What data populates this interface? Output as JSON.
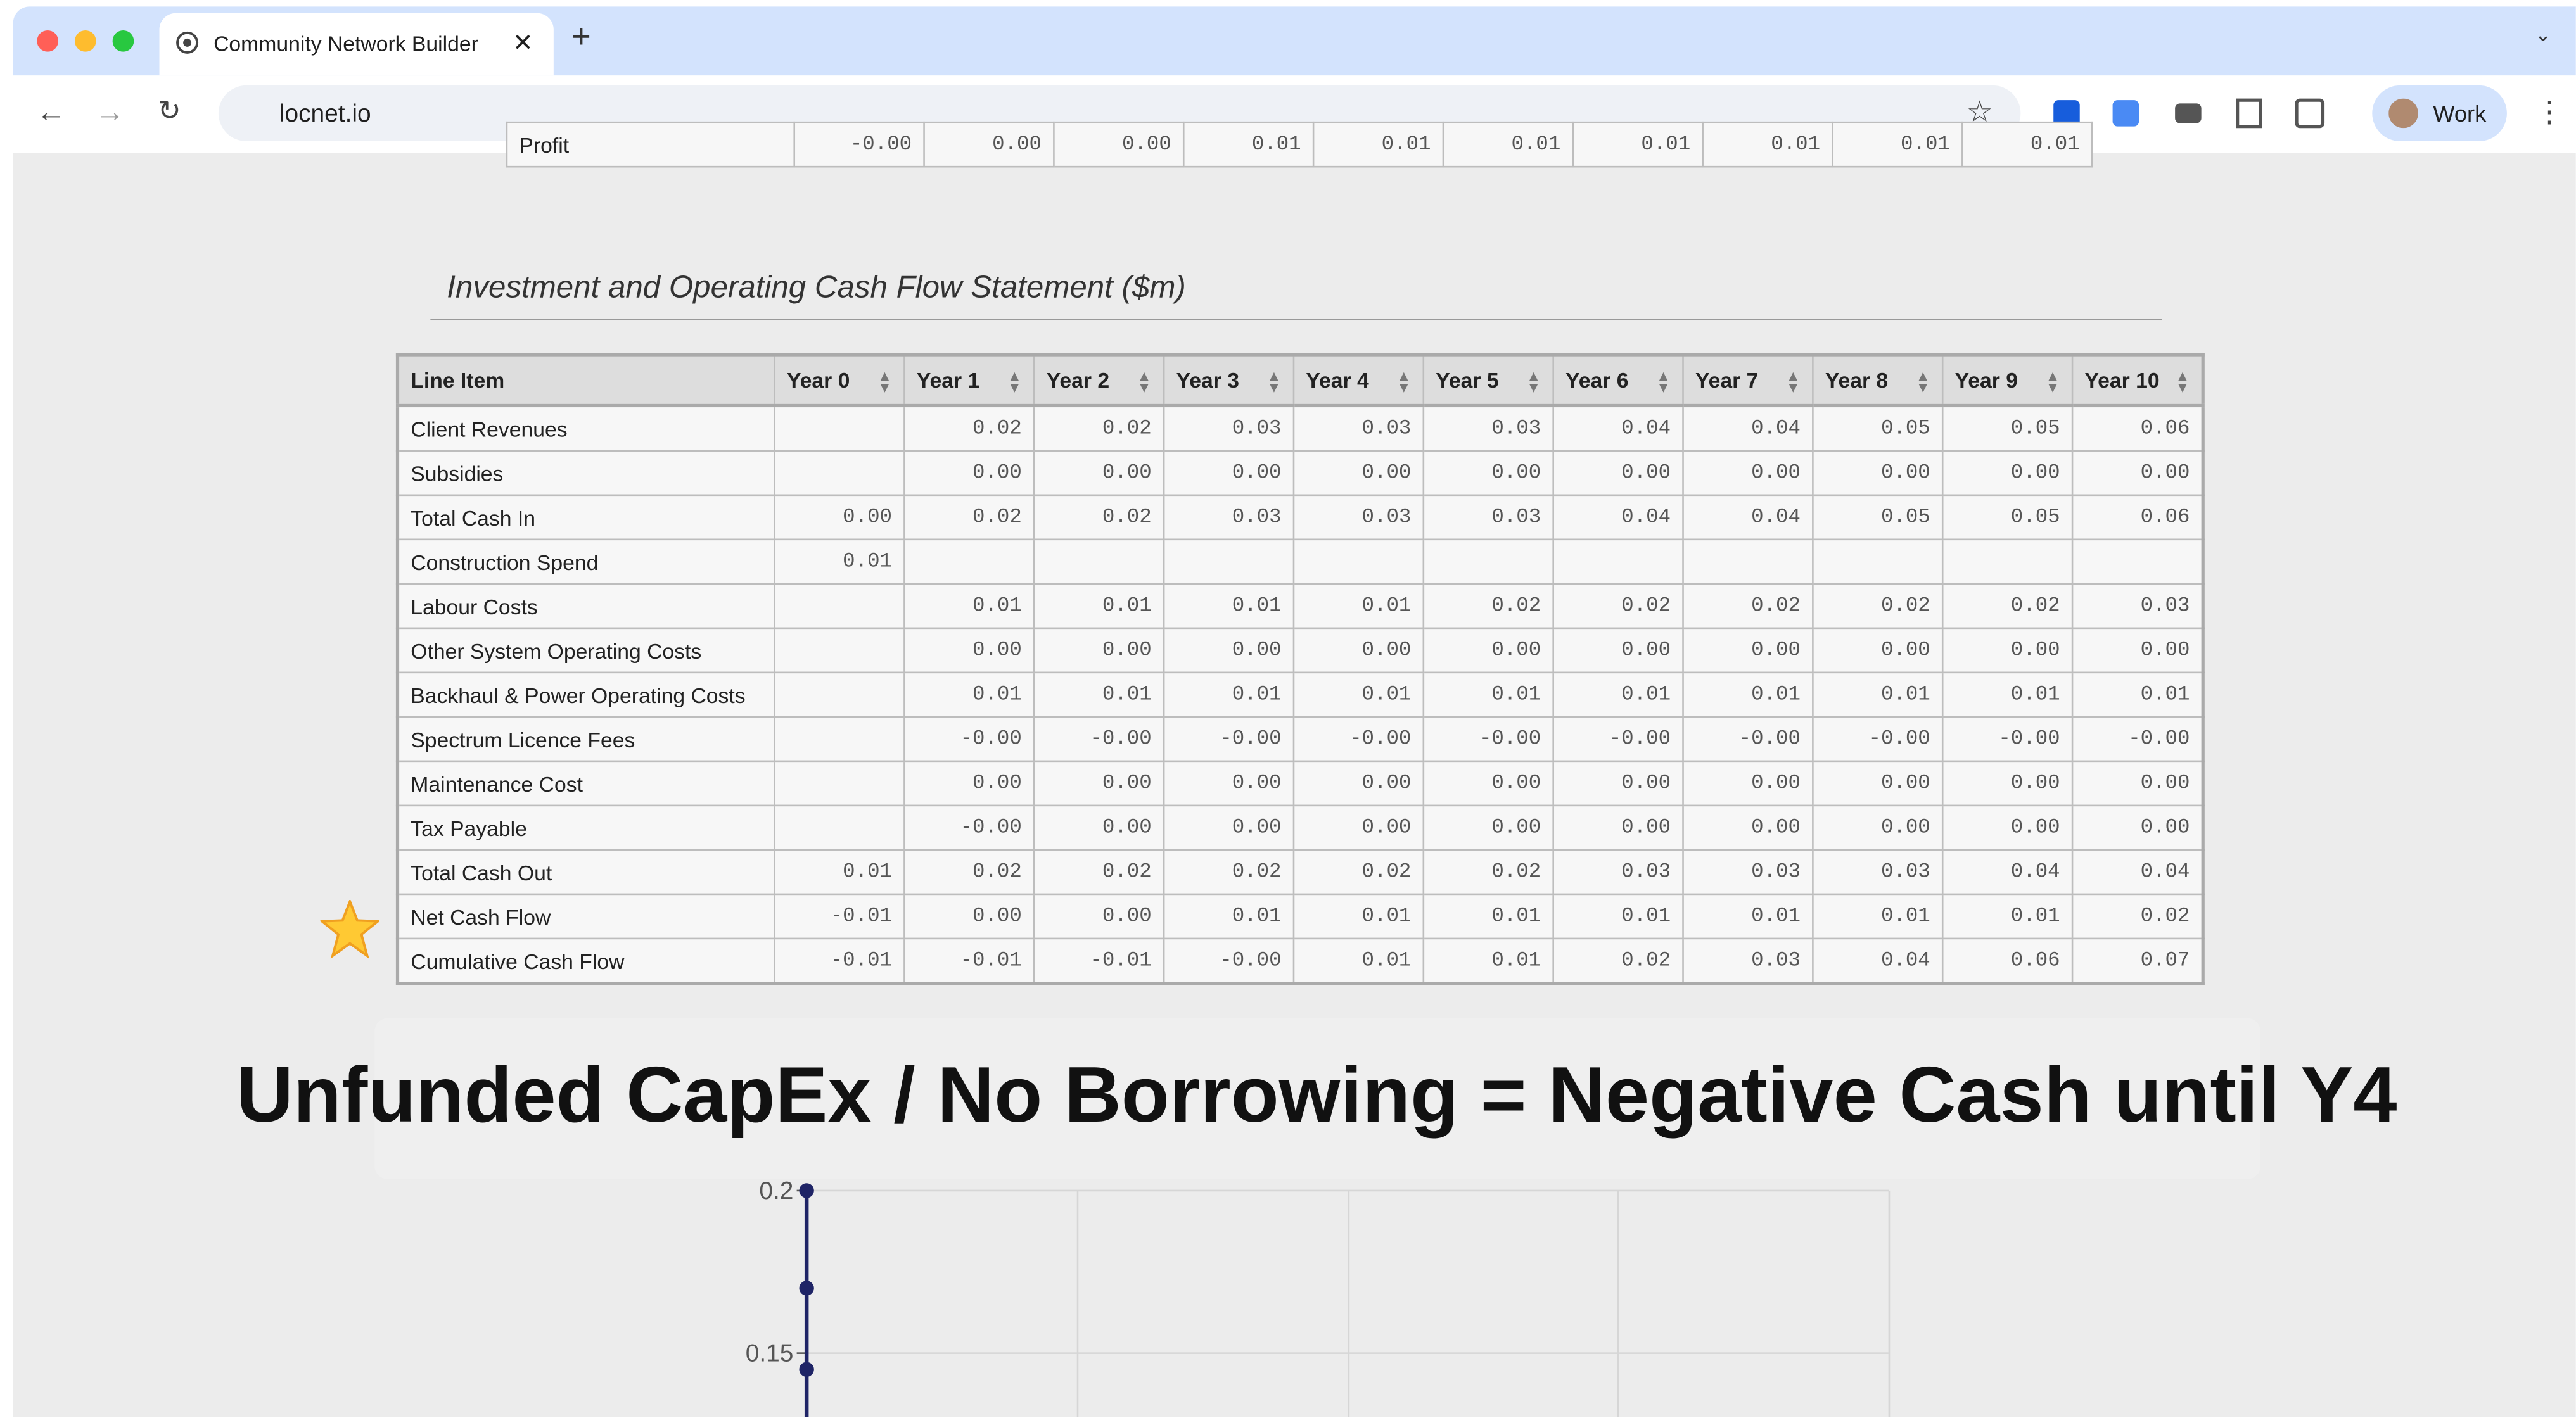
{
  "browser": {
    "tab_title": "Community Network Builder",
    "url": "locnet.io",
    "profile": "Work"
  },
  "previous_table": {
    "row": [
      "Profit",
      "-0.00",
      "0.00",
      "0.00",
      "0.01",
      "0.01",
      "0.01",
      "0.01",
      "0.01",
      "0.01",
      "0.01"
    ]
  },
  "section": {
    "title": "Investment and Operating Cash Flow Statement ($m)"
  },
  "table": {
    "columns": [
      "Line Item",
      "Year 0",
      "Year 1",
      "Year 2",
      "Year 3",
      "Year 4",
      "Year 5",
      "Year 6",
      "Year 7",
      "Year 8",
      "Year 9",
      "Year 10"
    ],
    "rows": [
      [
        "Client Revenues",
        null,
        "0.02",
        "0.02",
        "0.03",
        "0.03",
        "0.03",
        "0.04",
        "0.04",
        "0.05",
        "0.05",
        "0.06"
      ],
      [
        "Subsidies",
        null,
        "0.00",
        "0.00",
        "0.00",
        "0.00",
        "0.00",
        "0.00",
        "0.00",
        "0.00",
        "0.00",
        "0.00"
      ],
      [
        "Total Cash In",
        "0.00",
        "0.02",
        "0.02",
        "0.03",
        "0.03",
        "0.03",
        "0.04",
        "0.04",
        "0.05",
        "0.05",
        "0.06"
      ],
      [
        "Construction Spend",
        "0.01",
        null,
        null,
        null,
        null,
        null,
        null,
        null,
        null,
        null,
        null
      ],
      [
        "Labour Costs",
        null,
        "0.01",
        "0.01",
        "0.01",
        "0.01",
        "0.02",
        "0.02",
        "0.02",
        "0.02",
        "0.02",
        "0.03"
      ],
      [
        "Other System Operating Costs",
        null,
        "0.00",
        "0.00",
        "0.00",
        "0.00",
        "0.00",
        "0.00",
        "0.00",
        "0.00",
        "0.00",
        "0.00"
      ],
      [
        "Backhaul & Power Operating Costs",
        null,
        "0.01",
        "0.01",
        "0.01",
        "0.01",
        "0.01",
        "0.01",
        "0.01",
        "0.01",
        "0.01",
        "0.01"
      ],
      [
        "Spectrum Licence Fees",
        null,
        "-0.00",
        "-0.00",
        "-0.00",
        "-0.00",
        "-0.00",
        "-0.00",
        "-0.00",
        "-0.00",
        "-0.00",
        "-0.00"
      ],
      [
        "Maintenance Cost",
        null,
        "0.00",
        "0.00",
        "0.00",
        "0.00",
        "0.00",
        "0.00",
        "0.00",
        "0.00",
        "0.00",
        "0.00"
      ],
      [
        "Tax Payable",
        null,
        "-0.00",
        "0.00",
        "0.00",
        "0.00",
        "0.00",
        "0.00",
        "0.00",
        "0.00",
        "0.00",
        "0.00"
      ],
      [
        "Total Cash Out",
        "0.01",
        "0.02",
        "0.02",
        "0.02",
        "0.02",
        "0.02",
        "0.03",
        "0.03",
        "0.03",
        "0.04",
        "0.04"
      ],
      [
        "Net Cash Flow",
        "-0.01",
        "0.00",
        "0.00",
        "0.01",
        "0.01",
        "0.01",
        "0.01",
        "0.01",
        "0.01",
        "0.01",
        "0.02"
      ],
      [
        "Cumulative Cash Flow",
        "-0.01",
        "-0.01",
        "-0.01",
        "-0.00",
        "0.01",
        "0.01",
        "0.02",
        "0.03",
        "0.04",
        "0.06",
        "0.07"
      ]
    ]
  },
  "caption": "Unfunded CapEx / No Borrowing = Negative Cash until Y4",
  "chart_data": {
    "type": "line",
    "color": "#1f2466",
    "ylim": [
      0.1,
      0.2
    ],
    "yticks": [
      0.2,
      0.15
    ],
    "grid": true,
    "values": [
      0.2,
      0.17,
      0.145
    ]
  }
}
